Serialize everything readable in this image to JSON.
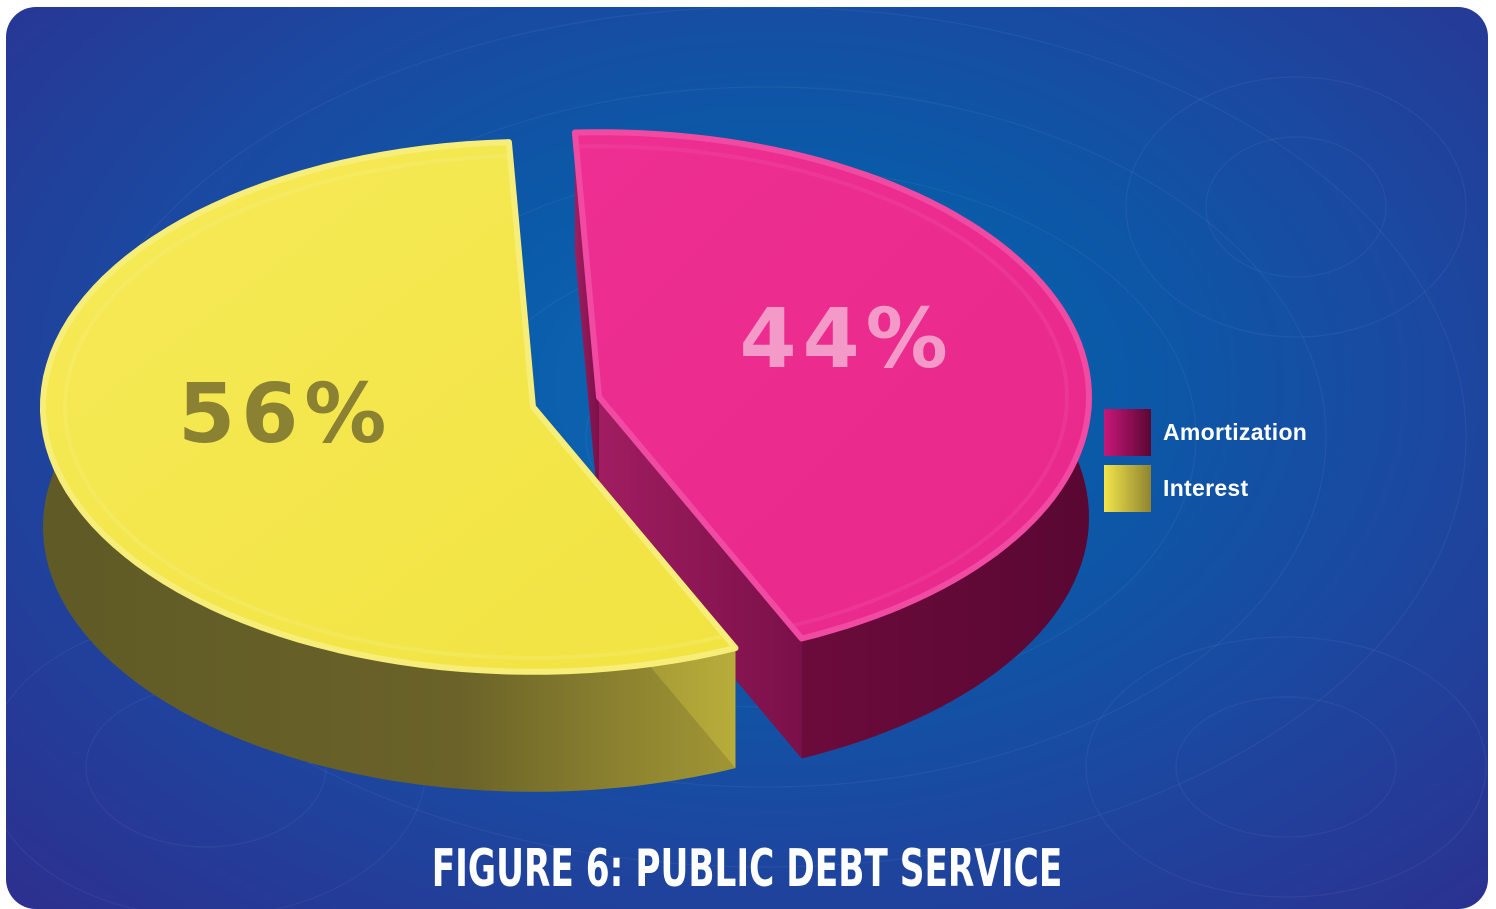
{
  "chart_data": {
    "type": "pie",
    "title": "FIGURE 6: PUBLIC DEBT SERVICE",
    "slices": [
      {
        "label": "Amortization",
        "value": 44,
        "display": "44%",
        "color": "#ec2a8e"
      },
      {
        "label": "Interest",
        "value": 56,
        "display": "56%",
        "color": "#f4e64c"
      }
    ],
    "legend_position": "right",
    "style": "3d-exploded"
  },
  "legend": {
    "items": [
      {
        "label": "Amortization",
        "icon": "magenta-swatch"
      },
      {
        "label": "Interest",
        "icon": "yellow-swatch"
      }
    ]
  },
  "caption": "FIGURE 6: PUBLIC DEBT SERVICE"
}
